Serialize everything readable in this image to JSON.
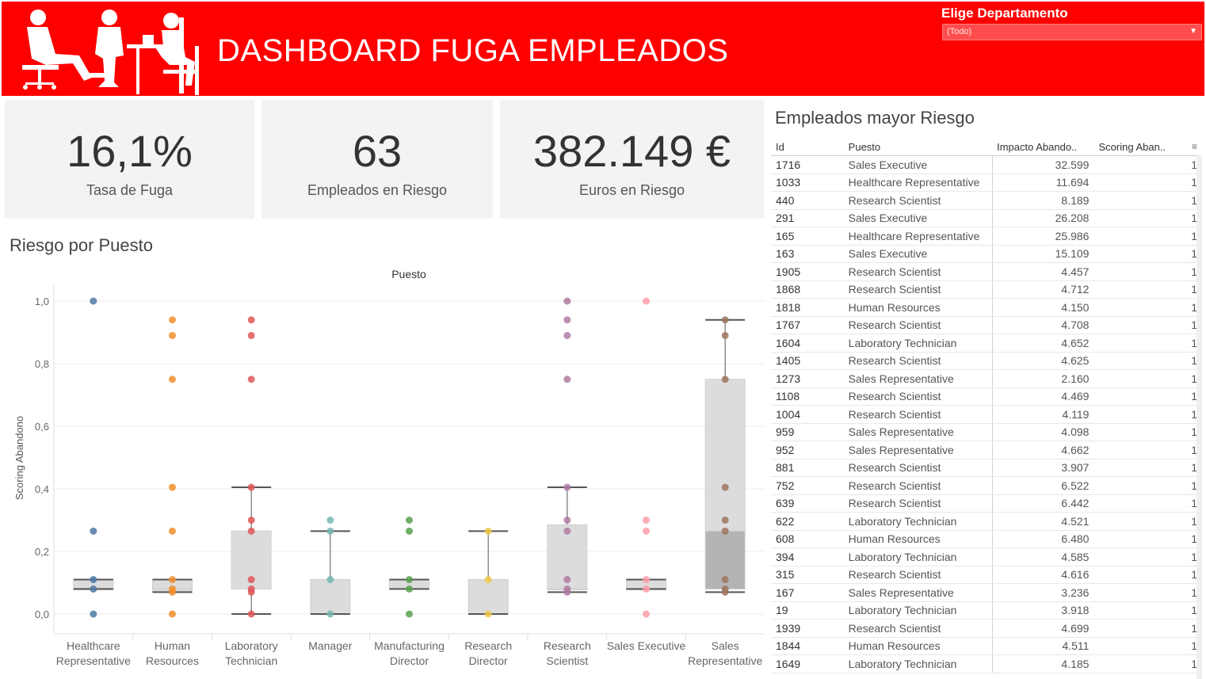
{
  "header": {
    "title": "DASHBOARD FUGA EMPLEADOS",
    "filter_label": "Elige Departamento",
    "filter_value": "(Todo)"
  },
  "kpis": [
    {
      "value": "16,1%",
      "label": "Tasa de Fuga"
    },
    {
      "value": "63",
      "label": "Empleados en Riesgo"
    },
    {
      "value": "382.149 €",
      "label": "Euros en Riesgo"
    }
  ],
  "chart_section_title": "Riesgo por Puesto",
  "table_section_title": "Empleados mayor Riesgo",
  "colors": {
    "header_red": "#ff0000",
    "kpi_bg": "#f3f3f3",
    "box_fill": "#dcdcdc"
  },
  "chart_data": {
    "type": "box_scatter",
    "title": "Puesto",
    "xlabel": "Puesto",
    "ylabel": "Scoring Abandono",
    "ylim": [
      0,
      1.0
    ],
    "yticks": [
      "0,0",
      "0,2",
      "0,4",
      "0,6",
      "0,8",
      "1,0"
    ],
    "categories": [
      {
        "name": "Healthcare Representative",
        "label1": "Healthcare",
        "label2": "Representative",
        "color": "#4e79a7",
        "points": [
          1.0,
          0.265,
          0.11,
          0.08,
          0.0
        ],
        "q1": 0.08,
        "median": 0.08,
        "q3": 0.11,
        "lo": 0.08,
        "hi": 0.11
      },
      {
        "name": "Human Resources",
        "label1": "Human",
        "label2": "Resources",
        "color": "#f28e2b",
        "points": [
          0.94,
          0.89,
          0.75,
          0.405,
          0.265,
          0.11,
          0.08,
          0.07,
          0.0
        ],
        "q1": 0.07,
        "median": 0.08,
        "q3": 0.11,
        "lo": 0.07,
        "hi": 0.11
      },
      {
        "name": "Laboratory Technician",
        "label1": "Laboratory",
        "label2": "Technician",
        "color": "#e15759",
        "points": [
          0.94,
          0.89,
          0.75,
          0.405,
          0.3,
          0.265,
          0.11,
          0.08,
          0.07,
          0.0
        ],
        "q1": 0.08,
        "median": 0.265,
        "q3": 0.265,
        "lo": 0.0,
        "hi": 0.405
      },
      {
        "name": "Manager",
        "label1": "Manager",
        "label2": "",
        "color": "#76b7b2",
        "points": [
          0.3,
          0.265,
          0.11,
          0.0
        ],
        "q1": 0.0,
        "median": 0.11,
        "q3": 0.11,
        "lo": 0.0,
        "hi": 0.265
      },
      {
        "name": "Manufacturing Director",
        "label1": "Manufacturing",
        "label2": "Director",
        "color": "#59a14f",
        "points": [
          0.3,
          0.265,
          0.11,
          0.08,
          0.0
        ],
        "q1": 0.08,
        "median": 0.11,
        "q3": 0.11,
        "lo": 0.08,
        "hi": 0.11
      },
      {
        "name": "Research Director",
        "label1": "Research",
        "label2": "Director",
        "color": "#edc948",
        "points": [
          0.265,
          0.11,
          0.0
        ],
        "q1": 0.0,
        "median": 0.11,
        "q3": 0.11,
        "lo": 0.0,
        "hi": 0.265
      },
      {
        "name": "Research Scientist",
        "label1": "Research",
        "label2": "Scientist",
        "color": "#b07aa1",
        "points": [
          1.0,
          0.94,
          0.89,
          0.75,
          0.405,
          0.3,
          0.265,
          0.11,
          0.08,
          0.07
        ],
        "q1": 0.08,
        "median": 0.08,
        "q3": 0.285,
        "lo": 0.07,
        "hi": 0.405
      },
      {
        "name": "Sales Executive",
        "label1": "Sales Executive",
        "label2": "",
        "color": "#ff9da7",
        "points": [
          1.0,
          0.3,
          0.265,
          0.11,
          0.08,
          0.0
        ],
        "q1": 0.08,
        "median": 0.08,
        "q3": 0.11,
        "lo": 0.08,
        "hi": 0.11
      },
      {
        "name": "Sales Representative",
        "label1": "Sales",
        "label2": "Representative",
        "color": "#9c755f",
        "points": [
          0.94,
          0.89,
          0.75,
          0.405,
          0.3,
          0.265,
          0.11,
          0.08,
          0.07
        ],
        "q1": 0.08,
        "median": 0.265,
        "q3": 0.75,
        "lo": 0.07,
        "hi": 0.94
      }
    ]
  },
  "table": {
    "columns": [
      "Id",
      "Puesto",
      "Impacto Abando..",
      "Scoring Aban.."
    ],
    "rows": [
      [
        "1716",
        "Sales Executive",
        "32.599",
        "1"
      ],
      [
        "1033",
        "Healthcare Representative",
        "11.694",
        "1"
      ],
      [
        "440",
        "Research Scientist",
        "8.189",
        "1"
      ],
      [
        "291",
        "Sales Executive",
        "26.208",
        "1"
      ],
      [
        "165",
        "Healthcare Representative",
        "25.986",
        "1"
      ],
      [
        "163",
        "Sales Executive",
        "15.109",
        "1"
      ],
      [
        "1905",
        "Research Scientist",
        "4.457",
        "1"
      ],
      [
        "1868",
        "Research Scientist",
        "4.712",
        "1"
      ],
      [
        "1818",
        "Human Resources",
        "4.150",
        "1"
      ],
      [
        "1767",
        "Research Scientist",
        "4.708",
        "1"
      ],
      [
        "1604",
        "Laboratory Technician",
        "4.652",
        "1"
      ],
      [
        "1405",
        "Research Scientist",
        "4.625",
        "1"
      ],
      [
        "1273",
        "Sales Representative",
        "2.160",
        "1"
      ],
      [
        "1108",
        "Research Scientist",
        "4.469",
        "1"
      ],
      [
        "1004",
        "Research Scientist",
        "4.119",
        "1"
      ],
      [
        "959",
        "Sales Representative",
        "4.098",
        "1"
      ],
      [
        "952",
        "Sales Representative",
        "4.662",
        "1"
      ],
      [
        "881",
        "Research Scientist",
        "3.907",
        "1"
      ],
      [
        "752",
        "Research Scientist",
        "6.522",
        "1"
      ],
      [
        "639",
        "Research Scientist",
        "6.442",
        "1"
      ],
      [
        "622",
        "Laboratory Technician",
        "4.521",
        "1"
      ],
      [
        "608",
        "Human Resources",
        "6.480",
        "1"
      ],
      [
        "394",
        "Laboratory Technician",
        "4.585",
        "1"
      ],
      [
        "315",
        "Research Scientist",
        "4.616",
        "1"
      ],
      [
        "167",
        "Sales Representative",
        "3.236",
        "1"
      ],
      [
        "19",
        "Laboratory Technician",
        "3.918",
        "1"
      ],
      [
        "1939",
        "Research Scientist",
        "4.699",
        "1"
      ],
      [
        "1844",
        "Human Resources",
        "4.511",
        "1"
      ],
      [
        "1649",
        "Laboratory Technician",
        "4.185",
        "1"
      ]
    ]
  }
}
